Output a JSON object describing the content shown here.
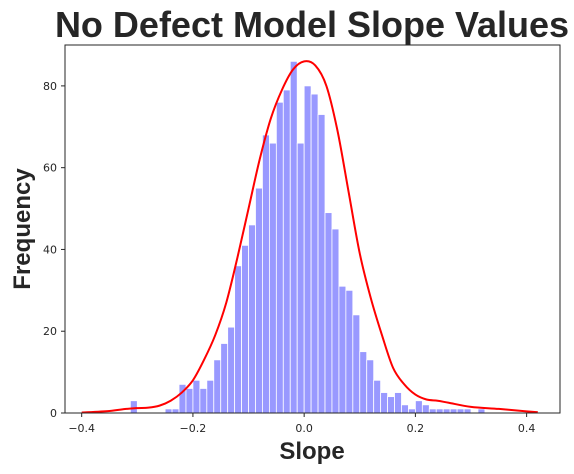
{
  "chart_data": {
    "type": "bar",
    "title": "No Defect Model Slope Values",
    "xlabel": "Slope",
    "ylabel": "Frequency",
    "xlim": [
      -0.43,
      0.46
    ],
    "ylim": [
      0,
      90
    ],
    "x_ticks": [
      -0.4,
      -0.2,
      0.0,
      0.2,
      0.4
    ],
    "x_tick_labels": [
      "−0.4",
      "−0.2",
      "0.0",
      "0.2",
      "0.4"
    ],
    "y_ticks": [
      0,
      20,
      40,
      60,
      80
    ],
    "y_tick_labels": [
      "0",
      "20",
      "40",
      "60",
      "80"
    ],
    "grid": false,
    "legend": "none",
    "histogram": {
      "bin_start": -0.3125,
      "bin_width": 0.0125,
      "counts": [
        3,
        0,
        0,
        0,
        0,
        1,
        1,
        7,
        6,
        8,
        6,
        8,
        13,
        17,
        21,
        36,
        41,
        46,
        55,
        68,
        66,
        76,
        79,
        86,
        66,
        80,
        78,
        73,
        49,
        45,
        31,
        30,
        24,
        15,
        13,
        8,
        5,
        4,
        5,
        2,
        1,
        3,
        2,
        1,
        1,
        1,
        1,
        1,
        1,
        0,
        1
      ],
      "color": "#9999ff"
    },
    "kde": {
      "x": [
        -0.4,
        -0.35,
        -0.32,
        -0.3,
        -0.28,
        -0.26,
        -0.24,
        -0.22,
        -0.2,
        -0.18,
        -0.16,
        -0.14,
        -0.12,
        -0.1,
        -0.08,
        -0.06,
        -0.04,
        -0.02,
        0.0,
        0.02,
        0.04,
        0.06,
        0.08,
        0.1,
        0.12,
        0.14,
        0.16,
        0.18,
        0.2,
        0.22,
        0.24,
        0.26,
        0.3,
        0.35,
        0.4,
        0.42
      ],
      "y": [
        0.1,
        0.5,
        1.0,
        1.2,
        1.3,
        1.8,
        3.0,
        5.0,
        8.0,
        13.0,
        19.0,
        27.0,
        38.0,
        50.0,
        62.0,
        72.0,
        79.0,
        84.0,
        86.0,
        85.0,
        80.0,
        69.0,
        54.0,
        39.0,
        28.0,
        19.0,
        11.0,
        7.0,
        4.5,
        3.3,
        3.0,
        2.5,
        1.5,
        1.0,
        0.4,
        0.2
      ],
      "color": "#ff0000"
    }
  }
}
